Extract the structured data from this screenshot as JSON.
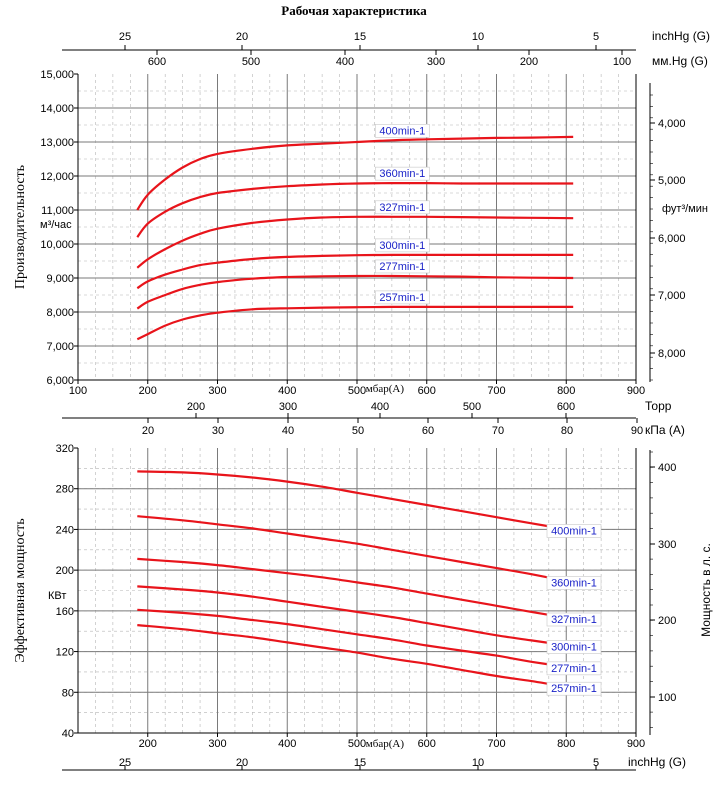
{
  "title": "Рабочая характеристика",
  "colors": {
    "curve": "#e8141b",
    "curve_label": "#1a22c8",
    "grid": "#7a7a7a",
    "axis": "#000000"
  },
  "chart_data": [
    {
      "id": "capacity",
      "type": "line",
      "ylabel": "Производительность",
      "yunit": "м³/час",
      "xlabel": "мбар(A)",
      "xlim": [
        100,
        900
      ],
      "ylim": [
        6000,
        15000
      ],
      "x_ticks": [
        "100",
        "200",
        "300",
        "400",
        "500",
        "600",
        "700",
        "800",
        "900"
      ],
      "y_ticks": [
        "6,000",
        "7,000",
        "8,000",
        "9,000",
        "10,000",
        "11,000",
        "12,000",
        "13,000",
        "14,000",
        "15,000"
      ],
      "right_axis": {
        "label": "фут³/мин",
        "ticks": [
          "4,000",
          "5,000",
          "6,000",
          "7,000",
          "8,000"
        ]
      },
      "top_axes": [
        {
          "label": "inchHg (G)",
          "ticks": [
            "25",
            "20",
            "15",
            "10",
            "5"
          ]
        },
        {
          "label": "мм.Hg (G)",
          "ticks": [
            "600",
            "500",
            "400",
            "300",
            "200",
            "100"
          ]
        }
      ],
      "series": [
        {
          "name": "400min-1",
          "x": [
            185,
            200,
            225,
            250,
            275,
            300,
            350,
            400,
            450,
            500,
            550,
            600,
            650,
            700,
            750,
            810
          ],
          "y": [
            11000,
            11450,
            11900,
            12250,
            12500,
            12650,
            12800,
            12900,
            12950,
            13000,
            13050,
            13080,
            13100,
            13120,
            13130,
            13150
          ]
        },
        {
          "name": "360min-1",
          "x": [
            185,
            200,
            225,
            250,
            275,
            300,
            350,
            400,
            450,
            500,
            550,
            600,
            650,
            700,
            750,
            810
          ],
          "y": [
            10200,
            10600,
            10950,
            11200,
            11380,
            11500,
            11620,
            11700,
            11750,
            11780,
            11790,
            11790,
            11780,
            11780,
            11780,
            11780
          ]
        },
        {
          "name": "327min-1",
          "x": [
            185,
            200,
            225,
            250,
            275,
            300,
            350,
            400,
            450,
            500,
            550,
            600,
            650,
            700,
            750,
            810
          ],
          "y": [
            9300,
            9550,
            9850,
            10100,
            10300,
            10450,
            10620,
            10720,
            10780,
            10800,
            10800,
            10800,
            10790,
            10780,
            10770,
            10760
          ]
        },
        {
          "name": "300min-1",
          "x": [
            185,
            200,
            225,
            250,
            275,
            300,
            350,
            400,
            450,
            500,
            550,
            600,
            650,
            700,
            750,
            810
          ],
          "y": [
            8700,
            8900,
            9100,
            9250,
            9380,
            9450,
            9560,
            9620,
            9650,
            9670,
            9680,
            9680,
            9680,
            9680,
            9680,
            9680
          ]
        },
        {
          "name": "277min-1",
          "x": [
            185,
            200,
            225,
            250,
            275,
            300,
            350,
            400,
            450,
            500,
            550,
            600,
            650,
            700,
            750,
            810
          ],
          "y": [
            8100,
            8300,
            8500,
            8680,
            8800,
            8880,
            8980,
            9030,
            9050,
            9060,
            9060,
            9050,
            9040,
            9020,
            9010,
            9000
          ]
        },
        {
          "name": "257min-1",
          "x": [
            185,
            200,
            225,
            250,
            275,
            300,
            350,
            400,
            450,
            500,
            550,
            600,
            650,
            700,
            750,
            810
          ],
          "y": [
            7200,
            7350,
            7600,
            7780,
            7900,
            7980,
            8080,
            8110,
            8130,
            8140,
            8150,
            8150,
            8150,
            8150,
            8150,
            8150
          ]
        }
      ]
    },
    {
      "id": "power",
      "type": "line",
      "ylabel": "Эффективная мощность",
      "yunit": "КВт",
      "xlabel": "мбар(A)",
      "xlim": [
        100,
        900
      ],
      "ylim": [
        40,
        320
      ],
      "x_ticks": [
        "200",
        "300",
        "400",
        "500",
        "600",
        "700",
        "800",
        "900"
      ],
      "y_ticks": [
        "40",
        "80",
        "120",
        "160",
        "200",
        "240",
        "280",
        "320"
      ],
      "right_axis": {
        "label": "Мощность в л. с.",
        "ticks": [
          "100",
          "200",
          "300",
          "400"
        ]
      },
      "top_axes": [
        {
          "label": "Торр",
          "ticks": [
            "200",
            "300",
            "400",
            "500",
            "600"
          ]
        },
        {
          "label": "кПа (A)",
          "ticks": [
            "20",
            "30",
            "40",
            "50",
            "60",
            "70",
            "80",
            "90"
          ]
        }
      ],
      "bottom_axis": {
        "label": "inchHg (G)",
        "ticks": [
          "25",
          "20",
          "15",
          "10",
          "5"
        ]
      },
      "series": [
        {
          "name": "400min-1",
          "x": [
            185,
            250,
            300,
            350,
            400,
            450,
            500,
            550,
            600,
            650,
            700,
            750,
            810
          ],
          "y": [
            297,
            296,
            294,
            291,
            287,
            282,
            276,
            270,
            264,
            258,
            252,
            246,
            239
          ]
        },
        {
          "name": "360min-1",
          "x": [
            185,
            250,
            300,
            350,
            400,
            450,
            500,
            550,
            600,
            650,
            700,
            750,
            810
          ],
          "y": [
            253,
            249,
            245,
            241,
            236,
            231,
            226,
            220,
            214,
            208,
            202,
            196,
            188
          ]
        },
        {
          "name": "327min-1",
          "x": [
            185,
            250,
            300,
            350,
            400,
            450,
            500,
            550,
            600,
            650,
            700,
            750,
            810
          ],
          "y": [
            211,
            208,
            205,
            201,
            197,
            193,
            188,
            183,
            177,
            171,
            165,
            159,
            152
          ]
        },
        {
          "name": "300min-1",
          "x": [
            185,
            250,
            300,
            350,
            400,
            450,
            500,
            550,
            600,
            650,
            700,
            750,
            810
          ],
          "y": [
            184,
            181,
            178,
            174,
            169,
            164,
            159,
            154,
            148,
            142,
            136,
            131,
            125
          ]
        },
        {
          "name": "277min-1",
          "x": [
            185,
            250,
            300,
            350,
            400,
            450,
            500,
            550,
            600,
            650,
            700,
            750,
            810
          ],
          "y": [
            161,
            158,
            155,
            151,
            147,
            142,
            137,
            132,
            126,
            121,
            116,
            110,
            104
          ]
        },
        {
          "name": "257min-1",
          "x": [
            185,
            250,
            300,
            350,
            400,
            450,
            500,
            550,
            600,
            650,
            700,
            750,
            810
          ],
          "y": [
            146,
            142,
            138,
            134,
            129,
            124,
            119,
            113,
            108,
            102,
            96,
            91,
            84
          ]
        }
      ]
    }
  ]
}
